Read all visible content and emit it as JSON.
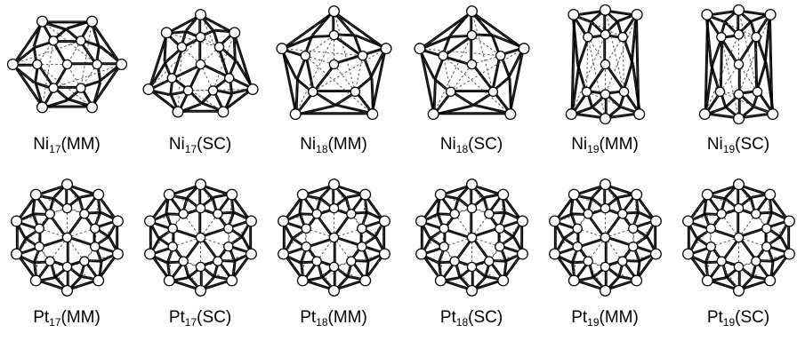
{
  "clusters": [
    {
      "element": "Ni",
      "subscript": "17",
      "method": "(MM)",
      "shape": "rhombus"
    },
    {
      "element": "Ni",
      "subscript": "17",
      "method": "(SC)",
      "shape": "trapezoid"
    },
    {
      "element": "Ni",
      "subscript": "18",
      "method": "(MM)",
      "shape": "pentagon"
    },
    {
      "element": "Ni",
      "subscript": "18",
      "method": "(SC)",
      "shape": "pentagon"
    },
    {
      "element": "Ni",
      "subscript": "19",
      "method": "(MM)",
      "shape": "tall-box"
    },
    {
      "element": "Ni",
      "subscript": "19",
      "method": "(SC)",
      "shape": "tall-box"
    },
    {
      "element": "Pt",
      "subscript": "17",
      "method": "(MM)",
      "shape": "octagon"
    },
    {
      "element": "Pt",
      "subscript": "17",
      "method": "(SC)",
      "shape": "octagon"
    },
    {
      "element": "Pt",
      "subscript": "18",
      "method": "(MM)",
      "shape": "octagon"
    },
    {
      "element": "Pt",
      "subscript": "18",
      "method": "(SC)",
      "shape": "octagon"
    },
    {
      "element": "Pt",
      "subscript": "19",
      "method": "(MM)",
      "shape": "octagon"
    },
    {
      "element": "Pt",
      "subscript": "19",
      "method": "(SC)",
      "shape": "octagon"
    }
  ]
}
